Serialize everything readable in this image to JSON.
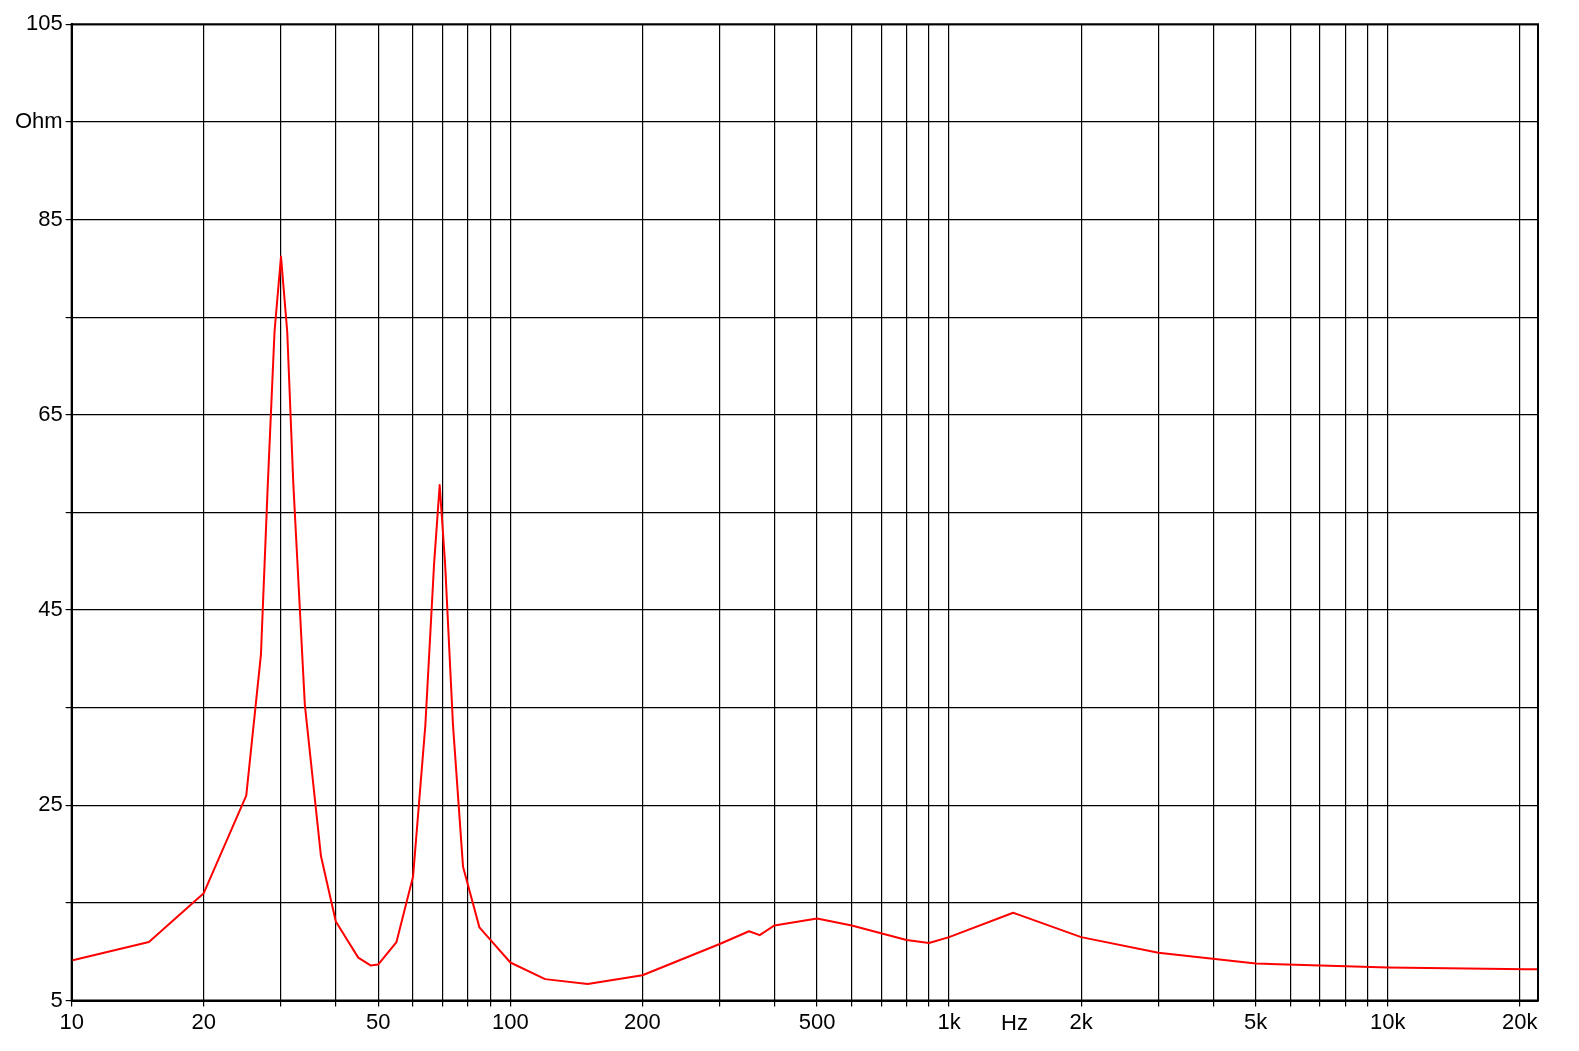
{
  "chart_data": {
    "type": "line",
    "xlabel": "Hz",
    "log": "x",
    "grid": true,
    "legend": false,
    "marker": "none",
    "line_style": "solid",
    "xlim": [
      10,
      22000
    ],
    "xticks": [
      10,
      20,
      {
        "value": 30,
        "label": null
      },
      {
        "value": 40,
        "label": null
      },
      50,
      {
        "value": 60,
        "label": null
      },
      {
        "value": 70,
        "label": null
      },
      {
        "value": 80,
        "label": null
      },
      {
        "value": 90,
        "label": null
      },
      100,
      200,
      {
        "value": 300,
        "label": null
      },
      {
        "value": 400,
        "label": null
      },
      500,
      {
        "value": 600,
        "label": null
      },
      {
        "value": 700,
        "label": null
      },
      {
        "value": 800,
        "label": null
      },
      {
        "value": 900,
        "label": null
      },
      {
        "value": 1000,
        "label": "1k"
      },
      {
        "value": 2000,
        "label": "2k"
      },
      {
        "value": 3000,
        "label": null
      },
      {
        "value": 4000,
        "label": null
      },
      {
        "value": 5000,
        "label": "5k"
      },
      {
        "value": 6000,
        "label": null
      },
      {
        "value": 7000,
        "label": null
      },
      {
        "value": 8000,
        "label": null
      },
      {
        "value": 9000,
        "label": null
      },
      {
        "value": 10000,
        "label": "10k"
      },
      {
        "value": 20000,
        "label": "20k"
      }
    ],
    "ylim": [
      5,
      105
    ],
    "yticks": [
      5,
      {
        "value": 15,
        "label": null
      },
      25,
      {
        "value": 35,
        "label": null
      },
      45,
      {
        "value": 55,
        "label": null
      },
      65,
      {
        "value": 75,
        "label": null
      },
      85,
      {
        "value": 95,
        "label": "Ohm"
      },
      105
    ],
    "x": [
      10,
      15,
      20,
      25,
      27,
      28,
      29,
      30,
      31,
      32,
      34,
      37,
      40,
      45,
      48,
      50,
      55,
      60,
      64,
      67,
      69,
      71,
      74,
      78,
      85,
      100,
      120,
      150,
      200,
      300,
      350,
      370,
      400,
      500,
      600,
      800,
      900,
      1000,
      1400,
      2000,
      3000,
      5000,
      10000,
      22000
    ],
    "series": [
      {
        "color": "#ff0000",
        "values": [
          9.1,
          11.0,
          16.0,
          26.0,
          40.4,
          58,
          73.5,
          81.2,
          73.5,
          58,
          35.3,
          19.8,
          13.1,
          9.4,
          8.6,
          8.7,
          11.0,
          17.7,
          33.2,
          49.7,
          57.8,
          49.7,
          33.2,
          18.7,
          12.5,
          8.9,
          7.2,
          6.7,
          7.6,
          10.8,
          12.1,
          11.7,
          12.7,
          13.4,
          12.7,
          11.2,
          10.9,
          11.5,
          14.0,
          11.5,
          9.9,
          8.8,
          8.4,
          8.2
        ]
      }
    ]
  }
}
